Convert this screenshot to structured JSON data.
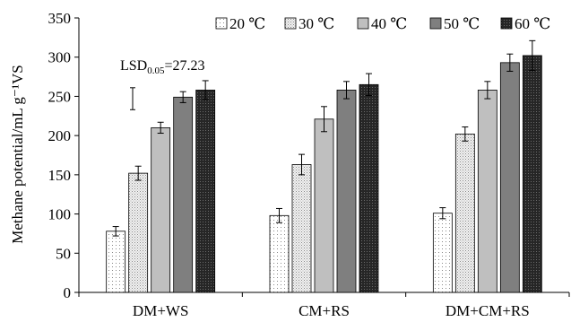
{
  "chart_data": {
    "type": "bar",
    "ylabel": "Methane potential/mL g⁻¹VS",
    "ylim": [
      0,
      350
    ],
    "yticks": [
      "0",
      "50",
      "100",
      "150",
      "200",
      "250",
      "300",
      "350"
    ],
    "categories": [
      "DM+WS",
      "CM+RS",
      "DM+CM+RS"
    ],
    "legend_position": "top-right",
    "series": [
      {
        "name": "20 ℃",
        "values": [
          78,
          98,
          101
        ],
        "errors": [
          6,
          9,
          7
        ],
        "color": "#ffffff",
        "pattern": "dots-sparse"
      },
      {
        "name": "30 ℃",
        "values": [
          152,
          163,
          202
        ],
        "errors": [
          9,
          13,
          9
        ],
        "color": "#e6e6e6",
        "pattern": "dots-dense"
      },
      {
        "name": "40 ℃",
        "values": [
          210,
          221,
          258
        ],
        "errors": [
          7,
          16,
          11
        ],
        "color": "#bfbfbf",
        "pattern": "solid"
      },
      {
        "name": "50 ℃",
        "values": [
          249,
          258,
          293
        ],
        "errors": [
          7,
          11,
          11
        ],
        "color": "#7f7f7f",
        "pattern": "solid"
      },
      {
        "name": "60 ℃",
        "values": [
          258,
          265,
          302
        ],
        "errors": [
          12,
          14,
          19
        ],
        "color": "#404040",
        "pattern": "dots-dark"
      }
    ],
    "annotation": {
      "label_main": "LSD",
      "label_sub": "0.05",
      "label_value": "=27.23",
      "bar_low": 233,
      "bar_high": 261
    }
  }
}
